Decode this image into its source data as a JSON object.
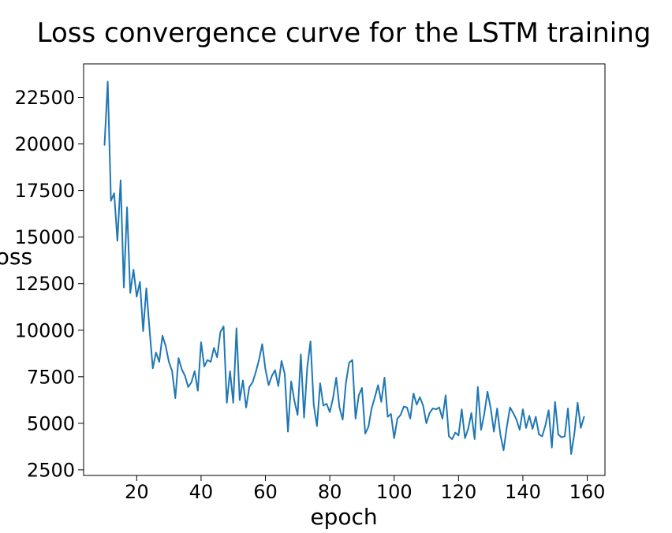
{
  "chart_data": {
    "type": "line",
    "title": "Loss convergence curve for the LSTM training",
    "xlabel": "epoch",
    "ylabel": "loss",
    "xlim": [
      3.5,
      165.5
    ],
    "ylim": [
      2200,
      24300
    ],
    "xticks": [
      20,
      40,
      60,
      80,
      100,
      120,
      140,
      160
    ],
    "yticks": [
      2500,
      5000,
      7500,
      10000,
      12500,
      15000,
      17500,
      20000,
      22500
    ],
    "grid": false,
    "series_color": "#1f77b4",
    "x": [
      10,
      11,
      12,
      13,
      14,
      15,
      16,
      17,
      18,
      19,
      20,
      21,
      22,
      23,
      24,
      25,
      26,
      27,
      28,
      29,
      30,
      31,
      32,
      33,
      34,
      35,
      36,
      37,
      38,
      39,
      40,
      41,
      42,
      43,
      44,
      45,
      46,
      47,
      48,
      49,
      50,
      51,
      52,
      53,
      54,
      55,
      56,
      57,
      58,
      59,
      60,
      61,
      62,
      63,
      64,
      65,
      66,
      67,
      68,
      69,
      70,
      71,
      72,
      73,
      74,
      75,
      76,
      77,
      78,
      79,
      80,
      81,
      82,
      83,
      84,
      85,
      86,
      87,
      88,
      89,
      90,
      91,
      92,
      93,
      94,
      95,
      96,
      97,
      98,
      99,
      100,
      101,
      102,
      103,
      104,
      105,
      106,
      107,
      108,
      109,
      110,
      111,
      112,
      113,
      114,
      115,
      116,
      117,
      118,
      119,
      120,
      121,
      122,
      123,
      124,
      125,
      126,
      127,
      128,
      129,
      130,
      131,
      132,
      133,
      134,
      135,
      136,
      137,
      138,
      139,
      140,
      141,
      142,
      143,
      144,
      145,
      146,
      147,
      148,
      149,
      150,
      151,
      152,
      153,
      154,
      155,
      156,
      157,
      158,
      159
    ],
    "series": [
      {
        "values": [
          19950,
          23350,
          16950,
          17350,
          14800,
          18050,
          12300,
          16600,
          12000,
          13250,
          11800,
          12600,
          9950,
          12250,
          10000,
          7950,
          8800,
          8300,
          9700,
          9150,
          8300,
          7800,
          6350,
          8500,
          7900,
          7550,
          6950,
          7200,
          7800,
          6750,
          9350,
          8050,
          8400,
          8300,
          9050,
          8550,
          9900,
          10200,
          6100,
          7800,
          6100,
          10100,
          6250,
          7300,
          5850,
          6950,
          7200,
          7750,
          8400,
          9250,
          7900,
          7050,
          7550,
          7850,
          7000,
          8350,
          7650,
          4550,
          7250,
          6200,
          5450,
          8700,
          5300,
          8000,
          9400,
          6000,
          4850,
          7150,
          5950,
          6050,
          5600,
          6350,
          7450,
          5850,
          5200,
          7150,
          8250,
          8400,
          5250,
          6500,
          6900,
          4450,
          4800,
          5800,
          6400,
          7050,
          6150,
          7450,
          5350,
          5500,
          4200,
          5250,
          5450,
          5900,
          5850,
          5250,
          6600,
          6000,
          6400,
          5950,
          5000,
          5550,
          5800,
          5750,
          5850,
          5250,
          6500,
          4300,
          4150,
          4500,
          4350,
          5750,
          4200,
          4700,
          5550,
          4150,
          6950,
          4650,
          5500,
          6700,
          5800,
          4550,
          5800,
          4400,
          3550,
          4800,
          5850,
          5550,
          5200,
          4650,
          5750,
          4750,
          5400,
          4700,
          5350,
          4400,
          4300,
          4900,
          5700,
          3700,
          6150,
          4400,
          4250,
          4300,
          5800,
          3350,
          4450,
          6100,
          4750,
          5350
        ]
      }
    ]
  }
}
